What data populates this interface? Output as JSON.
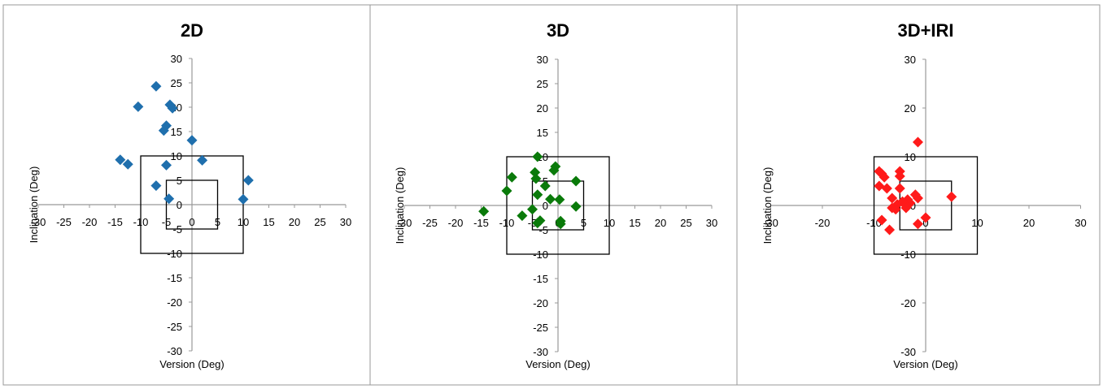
{
  "figure": {
    "colors": {
      "panel_border": "#999999",
      "axis": "#999999",
      "box": "#000000",
      "text": "#000000"
    }
  },
  "chart_data": [
    {
      "type": "scatter",
      "title": "2D",
      "xlabel": "Version (Deg)",
      "ylabel": "Inclination (Deg)",
      "xlim": [
        -30,
        30
      ],
      "ylim": [
        -30,
        30
      ],
      "x_ticks": [
        "-30",
        "-25",
        "-20",
        "-15",
        "-10",
        "-5",
        "0",
        "5",
        "10",
        "15",
        "20",
        "25",
        "30"
      ],
      "y_ticks": [
        "30",
        "25",
        "20",
        "15",
        "10",
        "5",
        "0",
        "-5",
        "-10",
        "-15",
        "-20",
        "-25",
        "-30"
      ],
      "x_tick_values": [
        -30,
        -25,
        -20,
        -15,
        -10,
        -5,
        0,
        5,
        10,
        15,
        20,
        25,
        30
      ],
      "y_tick_values": [
        30,
        25,
        20,
        15,
        10,
        5,
        0,
        -5,
        -10,
        -15,
        -20,
        -25,
        -30
      ],
      "marker_color": "#1f6fad",
      "boxes": [
        [
          -10,
          10
        ],
        [
          -5,
          5
        ]
      ],
      "points": [
        [
          -7,
          24.3
        ],
        [
          -10.5,
          20.1
        ],
        [
          -4.3,
          20.5
        ],
        [
          -3.8,
          19.8
        ],
        [
          -5.5,
          15.2
        ],
        [
          -5,
          16.2
        ],
        [
          0,
          13.2
        ],
        [
          -14,
          9.2
        ],
        [
          -12.5,
          8.3
        ],
        [
          2,
          9.1
        ],
        [
          -5,
          8.1
        ],
        [
          -7,
          3.9
        ],
        [
          -4.5,
          1.2
        ],
        [
          10,
          1.1
        ],
        [
          11,
          5
        ]
      ]
    },
    {
      "type": "scatter",
      "title": "3D",
      "xlabel": "Version (Deg)",
      "ylabel": "Inclination (Deg)",
      "xlim": [
        -30,
        30
      ],
      "ylim": [
        -30,
        30
      ],
      "x_ticks": [
        "-30",
        "-25",
        "-20",
        "-15",
        "-10",
        "-5",
        "0",
        "5",
        "10",
        "15",
        "20",
        "25",
        "30"
      ],
      "y_ticks": [
        "30",
        "25",
        "20",
        "15",
        "10",
        "5",
        "0",
        "-5",
        "-10",
        "-15",
        "-20",
        "-25",
        "-30"
      ],
      "x_tick_values": [
        -30,
        -25,
        -20,
        -15,
        -10,
        -5,
        0,
        5,
        10,
        15,
        20,
        25,
        30
      ],
      "y_tick_values": [
        30,
        25,
        20,
        15,
        10,
        5,
        0,
        -5,
        -10,
        -15,
        -20,
        -25,
        -30
      ],
      "marker_color": "#0a7a0a",
      "boxes": [
        [
          -10,
          10
        ],
        [
          -5,
          5
        ]
      ],
      "points": [
        [
          -4,
          10
        ],
        [
          -4.5,
          6.8
        ],
        [
          -4.3,
          5.5
        ],
        [
          -9,
          5.8
        ],
        [
          -10,
          3
        ],
        [
          -4,
          2.2
        ],
        [
          -2.5,
          4
        ],
        [
          -0.5,
          8
        ],
        [
          -0.8,
          7.2
        ],
        [
          3.5,
          5
        ],
        [
          -1.5,
          1.3
        ],
        [
          0.3,
          1.2
        ],
        [
          3.5,
          -0.2
        ],
        [
          -14.5,
          -1.2
        ],
        [
          -7,
          -2.1
        ],
        [
          -4,
          -3.6
        ],
        [
          -3.5,
          -3.1
        ],
        [
          0.5,
          -3.2
        ],
        [
          0.5,
          -3.8
        ],
        [
          -5,
          -0.8
        ]
      ]
    },
    {
      "type": "scatter",
      "title": "3D+IRI",
      "xlabel": "Version (Deg)",
      "ylabel": "Inclination (Deg)",
      "xlim": [
        -30,
        30
      ],
      "ylim": [
        -30,
        30
      ],
      "x_ticks": [
        "-30",
        "-20",
        "-10",
        "0",
        "10",
        "20",
        "30"
      ],
      "y_ticks": [
        "30",
        "20",
        "10",
        "0",
        "-10",
        "-20",
        "-30"
      ],
      "x_tick_values": [
        -30,
        -20,
        -10,
        0,
        10,
        20,
        30
      ],
      "y_tick_values": [
        30,
        20,
        10,
        0,
        -10,
        -20,
        -30
      ],
      "marker_color": "#ff1a1a",
      "boxes": [
        [
          -10,
          10
        ],
        [
          -5,
          5
        ]
      ],
      "points": [
        [
          -1.5,
          13
        ],
        [
          -9,
          7
        ],
        [
          -8.5,
          6.5
        ],
        [
          -8,
          5.8
        ],
        [
          -5,
          7
        ],
        [
          -5,
          6
        ],
        [
          -9,
          4
        ],
        [
          -7.5,
          3.5
        ],
        [
          -5,
          3.5
        ],
        [
          -6.5,
          1.5
        ],
        [
          -3.5,
          1.2
        ],
        [
          -2,
          2.2
        ],
        [
          -1.5,
          1.5
        ],
        [
          -3,
          0.5
        ],
        [
          -4,
          0.2
        ],
        [
          -5.5,
          0.2
        ],
        [
          -6.5,
          -0.5
        ],
        [
          -5.8,
          -0.8
        ],
        [
          -3.8,
          -0.5
        ],
        [
          0,
          -2.5
        ],
        [
          -1.5,
          -3.8
        ],
        [
          -8.5,
          -3
        ],
        [
          -7,
          -5
        ],
        [
          5,
          1.8
        ],
        [
          -4.5,
          0.8
        ]
      ]
    }
  ]
}
